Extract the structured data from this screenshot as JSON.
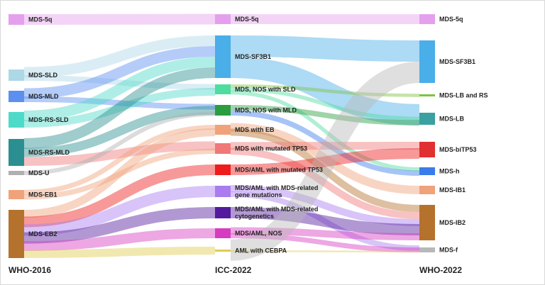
{
  "columns": [
    {
      "id": "who2016",
      "title": "WHO-2016",
      "nodes": [
        {
          "id": "w16-5q",
          "label": "MDS-5q",
          "color": "#e4a0ec"
        },
        {
          "id": "w16-sld",
          "label": "MDS-SLD",
          "color": "#add8e6"
        },
        {
          "id": "w16-mld",
          "label": "MDS-MLD",
          "color": "#5b8ff0"
        },
        {
          "id": "w16-rsl",
          "label": "MDS-RS-SLD",
          "color": "#4edac8"
        },
        {
          "id": "w16-rsm",
          "label": "MDS-RS-MLD",
          "color": "#2b8f91"
        },
        {
          "id": "w16-u",
          "label": "MDS-U",
          "color": "#b0b0b0"
        },
        {
          "id": "w16-eb1",
          "label": "MDS-EB1",
          "color": "#f0a27a"
        },
        {
          "id": "w16-eb2",
          "label": "MDS-EB2",
          "color": "#b5722d"
        }
      ]
    },
    {
      "id": "icc2022",
      "title": "ICC-2022",
      "nodes": [
        {
          "id": "icc-5q",
          "label": "MDS-5q",
          "color": "#e4a0ec"
        },
        {
          "id": "icc-sf3b1",
          "label": "MDS-SF3B1",
          "color": "#4aaee8"
        },
        {
          "id": "icc-nsld",
          "label": "MDS, NOS with SLD",
          "color": "#4edca0"
        },
        {
          "id": "icc-nmld",
          "label": "MDS, NOS with MLD",
          "color": "#2a9d3f"
        },
        {
          "id": "icc-eb",
          "label": "MDS with EB",
          "color": "#f0a27a"
        },
        {
          "id": "icc-tp53",
          "label": "MDS with mutated TP53",
          "color": "#f07878"
        },
        {
          "id": "icc-aml53",
          "label": "MDS/AML with mutated TP53",
          "color": "#ee1c1c"
        },
        {
          "id": "icc-gene",
          "label": "MDS/AML with MDS-related\ngene mutations",
          "color": "#a97cf0"
        },
        {
          "id": "icc-cyto",
          "label": "MDS/AML with MDS-related\ncytogenetics",
          "color": "#541a9e"
        },
        {
          "id": "icc-nos",
          "label": "MDS/AML, NOS",
          "color": "#d63cc0"
        },
        {
          "id": "icc-cebpa",
          "label": "AML with CEBPA",
          "color": "#e0cc50"
        }
      ]
    },
    {
      "id": "who2022",
      "title": "WHO-2022",
      "nodes": [
        {
          "id": "w22-5q",
          "label": "MDS-5q",
          "color": "#e4a0ec"
        },
        {
          "id": "w22-sf3b1",
          "label": "MDS-SF3B1",
          "color": "#4aaee8"
        },
        {
          "id": "w22-lbrs",
          "label": "MDS-LB and RS",
          "color": "#7cc442"
        },
        {
          "id": "w22-lb",
          "label": "MDS-LB",
          "color": "#3aa0a0"
        },
        {
          "id": "w22-bi",
          "label": "MDS-biTP53",
          "color": "#e03030"
        },
        {
          "id": "w22-h",
          "label": "MDS-h",
          "color": "#3a7ce8"
        },
        {
          "id": "w22-ib1",
          "label": "MDS-IB1",
          "color": "#f0a27a"
        },
        {
          "id": "w22-ib2",
          "label": "MDS-IB2",
          "color": "#b5722d"
        },
        {
          "id": "w22-f",
          "label": "MDS-f",
          "color": "#b8b8b8"
        }
      ]
    }
  ],
  "links": [
    {
      "source": "w16-5q",
      "target": "icc-5q",
      "color": "#e4a0ec"
    },
    {
      "source": "w16-sld",
      "target": "icc-sf3b1",
      "color": "#add8e6"
    },
    {
      "source": "w16-sld",
      "target": "icc-nsld",
      "color": "#add8e6"
    },
    {
      "source": "w16-mld",
      "target": "icc-sf3b1",
      "color": "#5b8ff0"
    },
    {
      "source": "w16-mld",
      "target": "icc-nmld",
      "color": "#5b8ff0"
    },
    {
      "source": "w16-rsl",
      "target": "icc-sf3b1",
      "color": "#4edac8"
    },
    {
      "source": "w16-rsl",
      "target": "icc-nsld",
      "color": "#4edac8"
    },
    {
      "source": "w16-rsm",
      "target": "icc-sf3b1",
      "color": "#2b8f91"
    },
    {
      "source": "w16-rsm",
      "target": "icc-nmld",
      "color": "#2b8f91"
    },
    {
      "source": "w16-rsm",
      "target": "icc-tp53",
      "color": "#f07878"
    },
    {
      "source": "w16-u",
      "target": "icc-nmld",
      "color": "#b0b0b0"
    },
    {
      "source": "w16-eb1",
      "target": "icc-eb",
      "color": "#f0a27a"
    },
    {
      "source": "w16-eb1",
      "target": "icc-tp53",
      "color": "#f0a27a"
    },
    {
      "source": "w16-eb2",
      "target": "icc-eb",
      "color": "#f0a27a"
    },
    {
      "source": "w16-eb2",
      "target": "icc-aml53",
      "color": "#ee1c1c"
    },
    {
      "source": "w16-eb2",
      "target": "icc-gene",
      "color": "#a97cf0"
    },
    {
      "source": "w16-eb2",
      "target": "icc-cyto",
      "color": "#541a9e"
    },
    {
      "source": "w16-eb2",
      "target": "icc-nos",
      "color": "#d63cc0"
    },
    {
      "source": "w16-eb2",
      "target": "icc-cebpa",
      "color": "#e0cc50"
    },
    {
      "source": "icc-5q",
      "target": "w22-5q",
      "color": "#e4a0ec"
    },
    {
      "source": "icc-sf3b1",
      "target": "w22-sf3b1",
      "color": "#4aaee8"
    },
    {
      "source": "icc-sf3b1",
      "target": "w22-lb",
      "color": "#4aaee8"
    },
    {
      "source": "icc-nsld",
      "target": "w22-lbrs",
      "color": "#7cc442"
    },
    {
      "source": "icc-nsld",
      "target": "w22-lb",
      "color": "#4edca0"
    },
    {
      "source": "icc-nsld",
      "target": "w22-h",
      "color": "#4edca0"
    },
    {
      "source": "icc-nmld",
      "target": "w22-lb",
      "color": "#2a9d3f"
    },
    {
      "source": "icc-nmld",
      "target": "w22-h",
      "color": "#3a7ce8"
    },
    {
      "source": "icc-eb",
      "target": "w22-ib1",
      "color": "#f0a27a"
    },
    {
      "source": "icc-eb",
      "target": "w22-ib2",
      "color": "#b5722d"
    },
    {
      "source": "icc-tp53",
      "target": "w22-bi",
      "color": "#f07878"
    },
    {
      "source": "icc-tp53",
      "target": "w22-ib2",
      "color": "#f07878"
    },
    {
      "source": "icc-aml53",
      "target": "w22-bi",
      "color": "#ee1c1c"
    },
    {
      "source": "icc-gene",
      "target": "w22-ib2",
      "color": "#a97cf0"
    },
    {
      "source": "icc-gene",
      "target": "w22-f",
      "color": "#a97cf0"
    },
    {
      "source": "icc-cyto",
      "target": "w22-ib2",
      "color": "#541a9e"
    },
    {
      "source": "icc-nos",
      "target": "w22-ib2",
      "color": "#d63cc0"
    },
    {
      "source": "icc-nos",
      "target": "w22-f",
      "color": "#d63cc0"
    },
    {
      "source": "icc-cebpa",
      "target": "w22-sf3b1",
      "color": "#b8b8b8"
    },
    {
      "source": "icc-cebpa",
      "target": "w22-f",
      "color": "#e0cc50"
    }
  ]
}
